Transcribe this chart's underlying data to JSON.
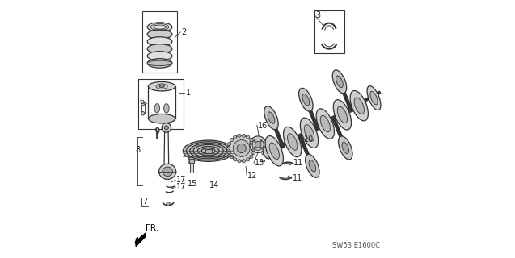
{
  "bg_color": "#ffffff",
  "line_color": "#333333",
  "part_code": "SW53 E1600C",
  "figsize": [
    6.37,
    3.2
  ],
  "dpi": 100
}
